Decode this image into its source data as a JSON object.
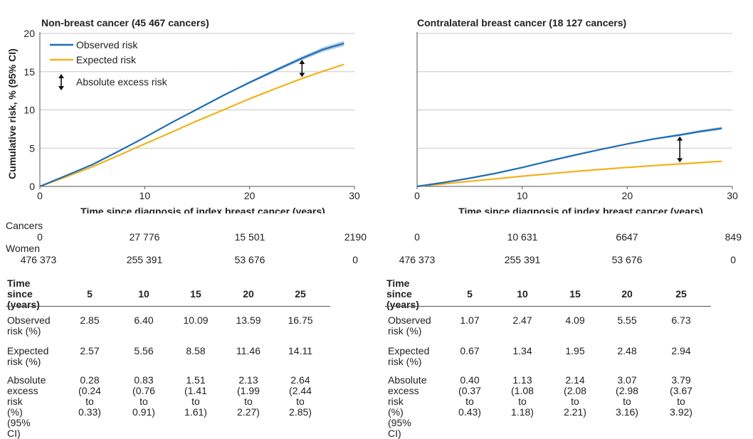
{
  "panels": [
    {
      "title": "Non-breast cancer (45 467 cancers)",
      "xlabel": "Time since diagnosis of index breast cancer (years)",
      "ylabel": "Cumulative risk, % (95% CI)",
      "legend": {
        "observed": "Observed risk",
        "expected": "Expected risk",
        "excess": "Absolute excess risk"
      },
      "at_risk": {
        "cancers_label": "Cancers",
        "women_label": "Women",
        "cancers": [
          "0",
          "27 776",
          "15 501",
          "2190"
        ],
        "women": [
          "476 373",
          "255 391",
          "53 676",
          "0"
        ]
      },
      "table": {
        "header_label": "Time since\n(years)",
        "years": [
          "5",
          "10",
          "15",
          "20",
          "25"
        ],
        "rows": [
          {
            "label": "Observed\nrisk (%)",
            "values": [
              "2.85",
              "6.40",
              "10.09",
              "13.59",
              "16.75"
            ]
          },
          {
            "label": "Expected\nrisk (%)",
            "values": [
              "2.57",
              "5.56",
              "8.58",
              "11.46",
              "14.11"
            ]
          },
          {
            "label": "Absolute\nexcess risk\n(%) (95% CI)",
            "values": [
              "0.28\n(0.24 to\n0.33)",
              "0.83\n(0.76 to\n0.91)",
              "1.51\n(1.41 to\n1.61)",
              "2.13\n(1.99 to\n2.27)",
              "2.64\n(2.44 to\n2.85)"
            ]
          }
        ]
      }
    },
    {
      "title": "Contralateral breast cancer (18 127 cancers)",
      "xlabel": "Time since diagnosis of index breast cancer (years)",
      "at_risk": {
        "cancers": [
          "0",
          "10 631",
          "6647",
          "849"
        ],
        "women": [
          "476 373",
          "255 391",
          "53 676",
          "0"
        ]
      },
      "table": {
        "header_label": "Time since\n(years)",
        "years": [
          "5",
          "10",
          "15",
          "20",
          "25"
        ],
        "rows": [
          {
            "label": "Observed\nrisk (%)",
            "values": [
              "1.07",
              "2.47",
              "4.09",
              "5.55",
              "6.73"
            ]
          },
          {
            "label": "Expected\nrisk (%)",
            "values": [
              "0.67",
              "1.34",
              "1.95",
              "2.48",
              "2.94"
            ]
          },
          {
            "label": "Absolute\nexcess risk\n(%) (95% CI)",
            "values": [
              "0.40\n(0.37 to\n0.43)",
              "1.13\n(1.08 to\n1.18)",
              "2.14\n(2.08 to\n2.21)",
              "3.07\n(2.98 to\n3.16)",
              "3.79\n(3.67 to\n3.92)"
            ]
          }
        ]
      }
    }
  ],
  "colors": {
    "observed": "#1f6db5",
    "observed_ci": "#9fbfe3",
    "expected": "#f2b21a",
    "grid": "#c8c8c8",
    "arrow": "#111111"
  },
  "chart_data": [
    {
      "type": "line",
      "title": "Non-breast cancer (45 467 cancers)",
      "xlabel": "Time since diagnosis of index breast cancer (years)",
      "ylabel": "Cumulative risk, % (95% CI)",
      "xlim": [
        0,
        30
      ],
      "ylim": [
        0,
        20
      ],
      "xticks": [
        0,
        10,
        20,
        30
      ],
      "yticks": [
        0,
        5,
        10,
        15,
        20
      ],
      "grid": "horizontal",
      "legend_position": "top-left",
      "excess_arrow_x": 25,
      "series": [
        {
          "name": "Observed risk",
          "x": [
            0,
            2.5,
            5,
            7.5,
            10,
            12.5,
            15,
            17.5,
            20,
            22.5,
            25,
            27,
            29
          ],
          "values": [
            0,
            1.4,
            2.85,
            4.6,
            6.4,
            8.3,
            10.09,
            11.9,
            13.59,
            15.2,
            16.75,
            17.9,
            18.7
          ],
          "ci_low": [
            0,
            1.35,
            2.8,
            4.55,
            6.35,
            8.2,
            9.99,
            11.8,
            13.45,
            15.0,
            16.5,
            17.6,
            18.35
          ],
          "ci_high": [
            0,
            1.45,
            2.9,
            4.65,
            6.45,
            8.4,
            10.19,
            12.0,
            13.73,
            15.4,
            17.0,
            18.2,
            19.05
          ]
        },
        {
          "name": "Expected risk",
          "x": [
            0,
            2.5,
            5,
            7.5,
            10,
            12.5,
            15,
            17.5,
            20,
            22.5,
            25,
            27,
            29
          ],
          "values": [
            0,
            1.25,
            2.57,
            4.05,
            5.56,
            7.05,
            8.58,
            10.0,
            11.46,
            12.8,
            14.11,
            15.05,
            15.95
          ]
        }
      ]
    },
    {
      "type": "line",
      "title": "Contralateral breast cancer (18 127 cancers)",
      "xlabel": "Time since diagnosis of index breast cancer (years)",
      "xlim": [
        0,
        30
      ],
      "ylim": [
        0,
        20
      ],
      "xticks": [
        0,
        10,
        20,
        30
      ],
      "yticks": [
        0,
        5,
        10,
        15,
        20
      ],
      "grid": "horizontal",
      "excess_arrow_x": 25,
      "series": [
        {
          "name": "Observed risk",
          "x": [
            0,
            2.5,
            5,
            7.5,
            10,
            12.5,
            15,
            17.5,
            20,
            22.5,
            25,
            27,
            29
          ],
          "values": [
            0,
            0.5,
            1.07,
            1.72,
            2.47,
            3.3,
            4.09,
            4.85,
            5.55,
            6.2,
            6.73,
            7.2,
            7.6
          ],
          "ci_low": [
            0,
            0.48,
            1.04,
            1.68,
            2.42,
            3.24,
            4.03,
            4.78,
            5.46,
            6.08,
            6.58,
            7.02,
            7.4
          ],
          "ci_high": [
            0,
            0.52,
            1.1,
            1.76,
            2.52,
            3.36,
            4.15,
            4.92,
            5.64,
            6.32,
            6.88,
            7.38,
            7.8
          ]
        },
        {
          "name": "Expected risk",
          "x": [
            0,
            2.5,
            5,
            7.5,
            10,
            12.5,
            15,
            17.5,
            20,
            22.5,
            25,
            27,
            29
          ],
          "values": [
            0,
            0.33,
            0.67,
            1.0,
            1.34,
            1.65,
            1.95,
            2.22,
            2.48,
            2.72,
            2.94,
            3.12,
            3.28
          ]
        }
      ]
    }
  ]
}
